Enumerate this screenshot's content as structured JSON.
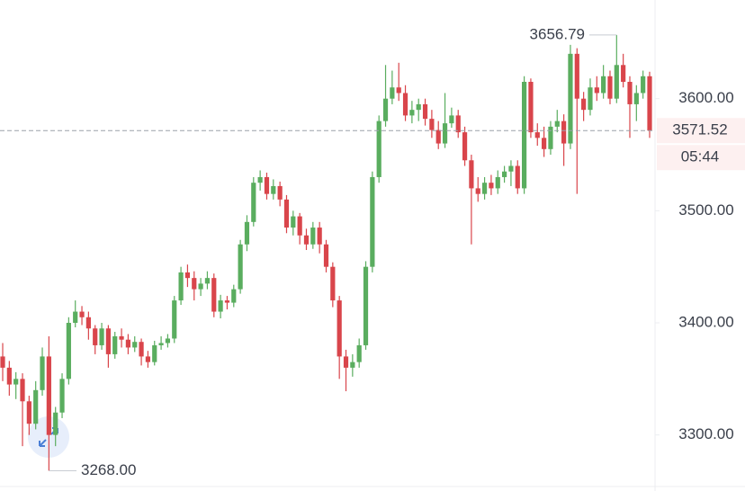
{
  "chart_data": {
    "type": "candlestick",
    "open": [
      3370,
      3360,
      3345,
      3350,
      3330,
      3310,
      3340,
      3370,
      3300,
      3320,
      3350,
      3400,
      3410,
      3405,
      3395,
      3380,
      3395,
      3372,
      3388,
      3385,
      3378,
      3383,
      3370,
      3365,
      3380,
      3382,
      3386,
      3420,
      3445,
      3440,
      3430,
      3435,
      3440,
      3410,
      3420,
      3418,
      3430,
      3470,
      3490,
      3525,
      3530,
      3515,
      3522,
      3510,
      3485,
      3495,
      3478,
      3470,
      3485,
      3470,
      3450,
      3420,
      3370,
      3360,
      3365,
      3380,
      3450,
      3530,
      3580,
      3600,
      3610,
      3605,
      3585,
      3590,
      3595,
      3582,
      3572,
      3560,
      3578,
      3585,
      3570,
      3545,
      3520,
      3515,
      3525,
      3520,
      3530,
      3535,
      3540,
      3520,
      3615,
      3570,
      3565,
      3555,
      3575,
      3580,
      3560,
      3640,
      3600,
      3590,
      3610,
      3605,
      3620,
      3600,
      3630,
      3615,
      3595,
      3605,
      3620
    ],
    "high": [
      3382,
      3366,
      3356,
      3355,
      3335,
      3348,
      3378,
      3388,
      3325,
      3355,
      3405,
      3420,
      3415,
      3410,
      3398,
      3400,
      3398,
      3392,
      3395,
      3390,
      3388,
      3386,
      3375,
      3384,
      3388,
      3390,
      3424,
      3450,
      3452,
      3446,
      3440,
      3446,
      3444,
      3425,
      3424,
      3434,
      3474,
      3496,
      3530,
      3536,
      3534,
      3528,
      3526,
      3514,
      3500,
      3498,
      3484,
      3490,
      3490,
      3474,
      3454,
      3424,
      3376,
      3372,
      3386,
      3455,
      3535,
      3585,
      3630,
      3625,
      3632,
      3612,
      3598,
      3600,
      3600,
      3590,
      3580,
      3605,
      3592,
      3590,
      3575,
      3550,
      3530,
      3530,
      3532,
      3536,
      3540,
      3545,
      3545,
      3620,
      3618,
      3578,
      3575,
      3580,
      3590,
      3586,
      3648,
      3645,
      3606,
      3618,
      3620,
      3630,
      3625,
      3656.79,
      3640,
      3620,
      3612,
      3625,
      3624
    ],
    "low": [
      3348,
      3335,
      3332,
      3290,
      3300,
      3305,
      3335,
      3268,
      3290,
      3315,
      3345,
      3396,
      3398,
      3385,
      3372,
      3376,
      3360,
      3368,
      3378,
      3372,
      3374,
      3362,
      3360,
      3362,
      3376,
      3378,
      3382,
      3416,
      3432,
      3420,
      3424,
      3430,
      3405,
      3404,
      3412,
      3414,
      3426,
      3464,
      3486,
      3518,
      3510,
      3510,
      3504,
      3480,
      3478,
      3470,
      3465,
      3466,
      3462,
      3445,
      3414,
      3350,
      3339,
      3352,
      3360,
      3376,
      3445,
      3525,
      3575,
      3595,
      3598,
      3580,
      3578,
      3580,
      3576,
      3565,
      3555,
      3556,
      3574,
      3565,
      3540,
      3470,
      3508,
      3510,
      3514,
      3515,
      3525,
      3522,
      3515,
      3515,
      3565,
      3558,
      3548,
      3550,
      3570,
      3540,
      3555,
      3515,
      3580,
      3585,
      3598,
      3600,
      3595,
      3596,
      3610,
      3565,
      3580,
      3600,
      3565
    ],
    "close": [
      3360,
      3345,
      3350,
      3330,
      3310,
      3340,
      3370,
      3300,
      3320,
      3350,
      3400,
      3410,
      3405,
      3395,
      3380,
      3395,
      3372,
      3388,
      3385,
      3378,
      3383,
      3370,
      3365,
      3380,
      3382,
      3386,
      3420,
      3445,
      3440,
      3430,
      3435,
      3440,
      3410,
      3420,
      3418,
      3430,
      3470,
      3490,
      3525,
      3530,
      3515,
      3522,
      3510,
      3485,
      3495,
      3478,
      3470,
      3485,
      3470,
      3450,
      3420,
      3370,
      3360,
      3365,
      3380,
      3450,
      3530,
      3580,
      3600,
      3610,
      3605,
      3585,
      3590,
      3595,
      3582,
      3572,
      3560,
      3578,
      3585,
      3570,
      3545,
      3520,
      3515,
      3525,
      3520,
      3530,
      3535,
      3540,
      3520,
      3615,
      3570,
      3565,
      3555,
      3575,
      3580,
      3560,
      3640,
      3600,
      3590,
      3610,
      3605,
      3620,
      3600,
      3630,
      3615,
      3595,
      3605,
      3620,
      3571.52
    ],
    "up_color": "#5aad5f",
    "down_color": "#d9454b",
    "ylim": [
      3250,
      3688
    ],
    "yticks": [
      {
        "value": 3300,
        "label": "3300.00"
      },
      {
        "value": 3400,
        "label": "3400.00"
      },
      {
        "value": 3500,
        "label": "3500.00"
      },
      {
        "value": 3600,
        "label": "3600.00"
      }
    ],
    "high_marker": {
      "value": 3656.79,
      "label": "3656.79"
    },
    "low_marker": {
      "value": 3268,
      "label": "3268.00"
    },
    "last_price": {
      "value": 3571.52,
      "label": "3571.52"
    },
    "countdown": "05:44"
  }
}
